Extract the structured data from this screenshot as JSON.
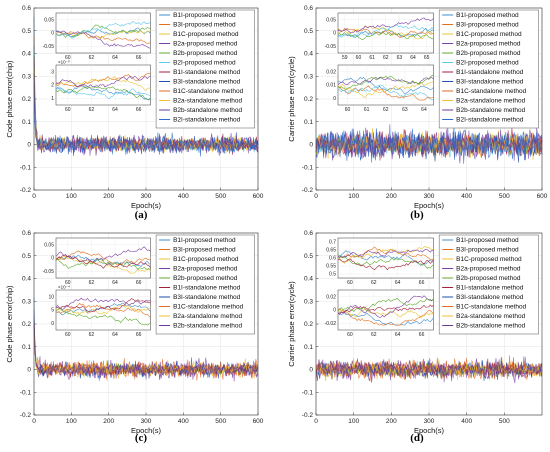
{
  "chart_data": [
    {
      "type": "line",
      "panel": "(a)",
      "xlabel": "Epoch(s)",
      "ylabel": "Code phase error(chip)",
      "xlim": [
        0,
        600
      ],
      "ylim": [
        -0.2,
        0.6
      ],
      "xticks": [
        "0",
        "100",
        "200",
        "300",
        "400",
        "500",
        "600"
      ],
      "yticks": [
        "-0.2",
        "-0.1",
        "0",
        "0.1",
        "0.2",
        "0.3",
        "0.4",
        "0.5",
        "0.6"
      ],
      "grid": true,
      "legend_position": "top-right",
      "series": [
        {
          "name": "B1I-proposed method",
          "color": "#3f8fd2"
        },
        {
          "name": "B3I-proposed method",
          "color": "#e3701f"
        },
        {
          "name": "B1C-proposed method",
          "color": "#e8c230"
        },
        {
          "name": "B2a-proposed method",
          "color": "#7b3fa3"
        },
        {
          "name": "B2b-proposed method",
          "color": "#5cab2f"
        },
        {
          "name": "B2I-proposed method",
          "color": "#5fc8eb"
        },
        {
          "name": "B1I-standalone method",
          "color": "#a3203a"
        },
        {
          "name": "B3I-standalone method",
          "color": "#1f4fb0"
        },
        {
          "name": "B1C-standalone method",
          "color": "#e06828"
        },
        {
          "name": "B2a-standalone method",
          "color": "#f2c036"
        },
        {
          "name": "B2b-standalone method",
          "color": "#6a3a9a"
        },
        {
          "name": "B2I-standalone method",
          "color": "#2f6bcd"
        }
      ],
      "steady_state_band": [
        -0.05,
        0.05
      ],
      "initial_peak": 0.55,
      "insets": [
        {
          "xticks": [
            "60",
            "62",
            "64",
            "66"
          ],
          "yticks": [
            "-0.05",
            "0",
            "0.05"
          ]
        },
        {
          "xticks": [
            "60",
            "62",
            "64",
            "66"
          ],
          "yticks": [
            "1",
            "2",
            "3"
          ],
          "exponent": "×10⁻³"
        }
      ]
    },
    {
      "type": "line",
      "panel": "(b)",
      "xlabel": "Epoch(s)",
      "ylabel": "Carrier phase error(cycle)",
      "xlim": [
        0,
        600
      ],
      "ylim": [
        -0.2,
        0.6
      ],
      "xticks": [
        "0",
        "100",
        "200",
        "300",
        "400",
        "500",
        "600"
      ],
      "yticks": [
        "-0.2",
        "-0.1",
        "0",
        "0.1",
        "0.2",
        "0.3",
        "0.4",
        "0.5",
        "0.6"
      ],
      "grid": true,
      "legend_position": "top-right",
      "series": [
        {
          "name": "B1I-proposed method",
          "color": "#3f8fd2"
        },
        {
          "name": "B3I-proposed method",
          "color": "#e3701f"
        },
        {
          "name": "B1C-proposed method",
          "color": "#e8c230"
        },
        {
          "name": "B2a-proposed method",
          "color": "#7b3fa3"
        },
        {
          "name": "B2b-proposed method",
          "color": "#5cab2f"
        },
        {
          "name": "B2I-proposed method",
          "color": "#5fc8eb"
        },
        {
          "name": "B1I-standalone method",
          "color": "#a3203a"
        },
        {
          "name": "B3I-standalone method",
          "color": "#1f4fb0"
        },
        {
          "name": "B1C-standalone method",
          "color": "#e06828"
        },
        {
          "name": "B2a-standalone method",
          "color": "#f2c036"
        },
        {
          "name": "B2b-standalone method",
          "color": "#6a3a9a"
        },
        {
          "name": "B2I-standalone method",
          "color": "#2f6bcd"
        }
      ],
      "steady_state_band": [
        -0.08,
        0.08
      ],
      "initial_peak": 0,
      "insets": [
        {
          "xticks": [
            "59",
            "60",
            "61",
            "62",
            "63",
            "64",
            "65"
          ],
          "yticks": [
            "-0.05",
            "0",
            "0.05"
          ]
        },
        {
          "xticks": [
            "60",
            "61",
            "62",
            "63",
            "64"
          ],
          "yticks": [
            "0",
            "0.01",
            "0.02"
          ]
        }
      ]
    },
    {
      "type": "line",
      "panel": "(c)",
      "xlabel": "Epoch(s)",
      "ylabel": "Code phase error(chip)",
      "xlim": [
        0,
        600
      ],
      "ylim": [
        -0.2,
        0.6
      ],
      "xticks": [
        "0",
        "100",
        "200",
        "300",
        "400",
        "500",
        "600"
      ],
      "yticks": [
        "-0.2",
        "-0.1",
        "0",
        "0.1",
        "0.2",
        "0.3",
        "0.4",
        "0.5",
        "0.6"
      ],
      "grid": true,
      "legend_position": "top-right",
      "series": [
        {
          "name": "B1I-proposed method",
          "color": "#3f8fd2"
        },
        {
          "name": "B3I-proposed method",
          "color": "#e3701f"
        },
        {
          "name": "B1C-proposed method",
          "color": "#e8c230"
        },
        {
          "name": "B2a-proposed method",
          "color": "#7b3fa3"
        },
        {
          "name": "B2b-proposed method",
          "color": "#5cab2f"
        },
        {
          "name": "B1I-standalone method",
          "color": "#a3203a"
        },
        {
          "name": "B3I-standalone method",
          "color": "#1f4fb0"
        },
        {
          "name": "B1C-standalone method",
          "color": "#e06828"
        },
        {
          "name": "B2a-standalone method",
          "color": "#f2c036"
        },
        {
          "name": "B2b-standalone method",
          "color": "#6a3a9a"
        }
      ],
      "steady_state_band": [
        -0.05,
        0.05
      ],
      "initial_peak": 0.3,
      "insets": [
        {
          "xticks": [
            "60",
            "62",
            "64",
            "66"
          ],
          "yticks": [
            "-0.05",
            "0",
            "0.05"
          ]
        },
        {
          "xticks": [
            "60",
            "62",
            "64",
            "66"
          ],
          "yticks": [
            "0",
            "5",
            "10"
          ],
          "exponent": "×10⁻⁴"
        }
      ]
    },
    {
      "type": "line",
      "panel": "(d)",
      "xlabel": "Epoch(s)",
      "ylabel": "Carrier phase error(cycle)",
      "xlim": [
        0,
        600
      ],
      "ylim": [
        -0.2,
        0.6
      ],
      "xticks": [
        "0",
        "100",
        "200",
        "300",
        "400",
        "500"
      ],
      "yticks": [
        "-0.2",
        "-0.1",
        "0",
        "0.1",
        "0.2",
        "0.3",
        "0.4",
        "0.5",
        "0.6"
      ],
      "grid": true,
      "legend_position": "top-right",
      "series": [
        {
          "name": "B1I-proposed method",
          "color": "#3f8fd2"
        },
        {
          "name": "B3I-proposed method",
          "color": "#e3701f"
        },
        {
          "name": "B1C-proposed method",
          "color": "#e8c230"
        },
        {
          "name": "B2a-proposed method",
          "color": "#7b3fa3"
        },
        {
          "name": "B2b-proposed method",
          "color": "#5cab2f"
        },
        {
          "name": "B1I-standalone method",
          "color": "#a3203a"
        },
        {
          "name": "B3I-standalone method",
          "color": "#1f4fb0"
        },
        {
          "name": "B1C-standalone method",
          "color": "#e06828"
        },
        {
          "name": "B2a-standalone method",
          "color": "#f2c036"
        },
        {
          "name": "B2b-standalone method",
          "color": "#6a3a9a"
        }
      ],
      "steady_state_band": [
        -0.06,
        0.06
      ],
      "initial_peak": 0,
      "insets": [
        {
          "xticks": [
            "60",
            "62",
            "64",
            "66"
          ],
          "yticks": [
            "0.5",
            "0.55",
            "0.6",
            "0.65",
            "0.7"
          ]
        },
        {
          "xticks": [
            "60",
            "62",
            "64",
            "66"
          ],
          "yticks": [
            "-0.02",
            "0",
            "0.02"
          ]
        }
      ]
    }
  ]
}
